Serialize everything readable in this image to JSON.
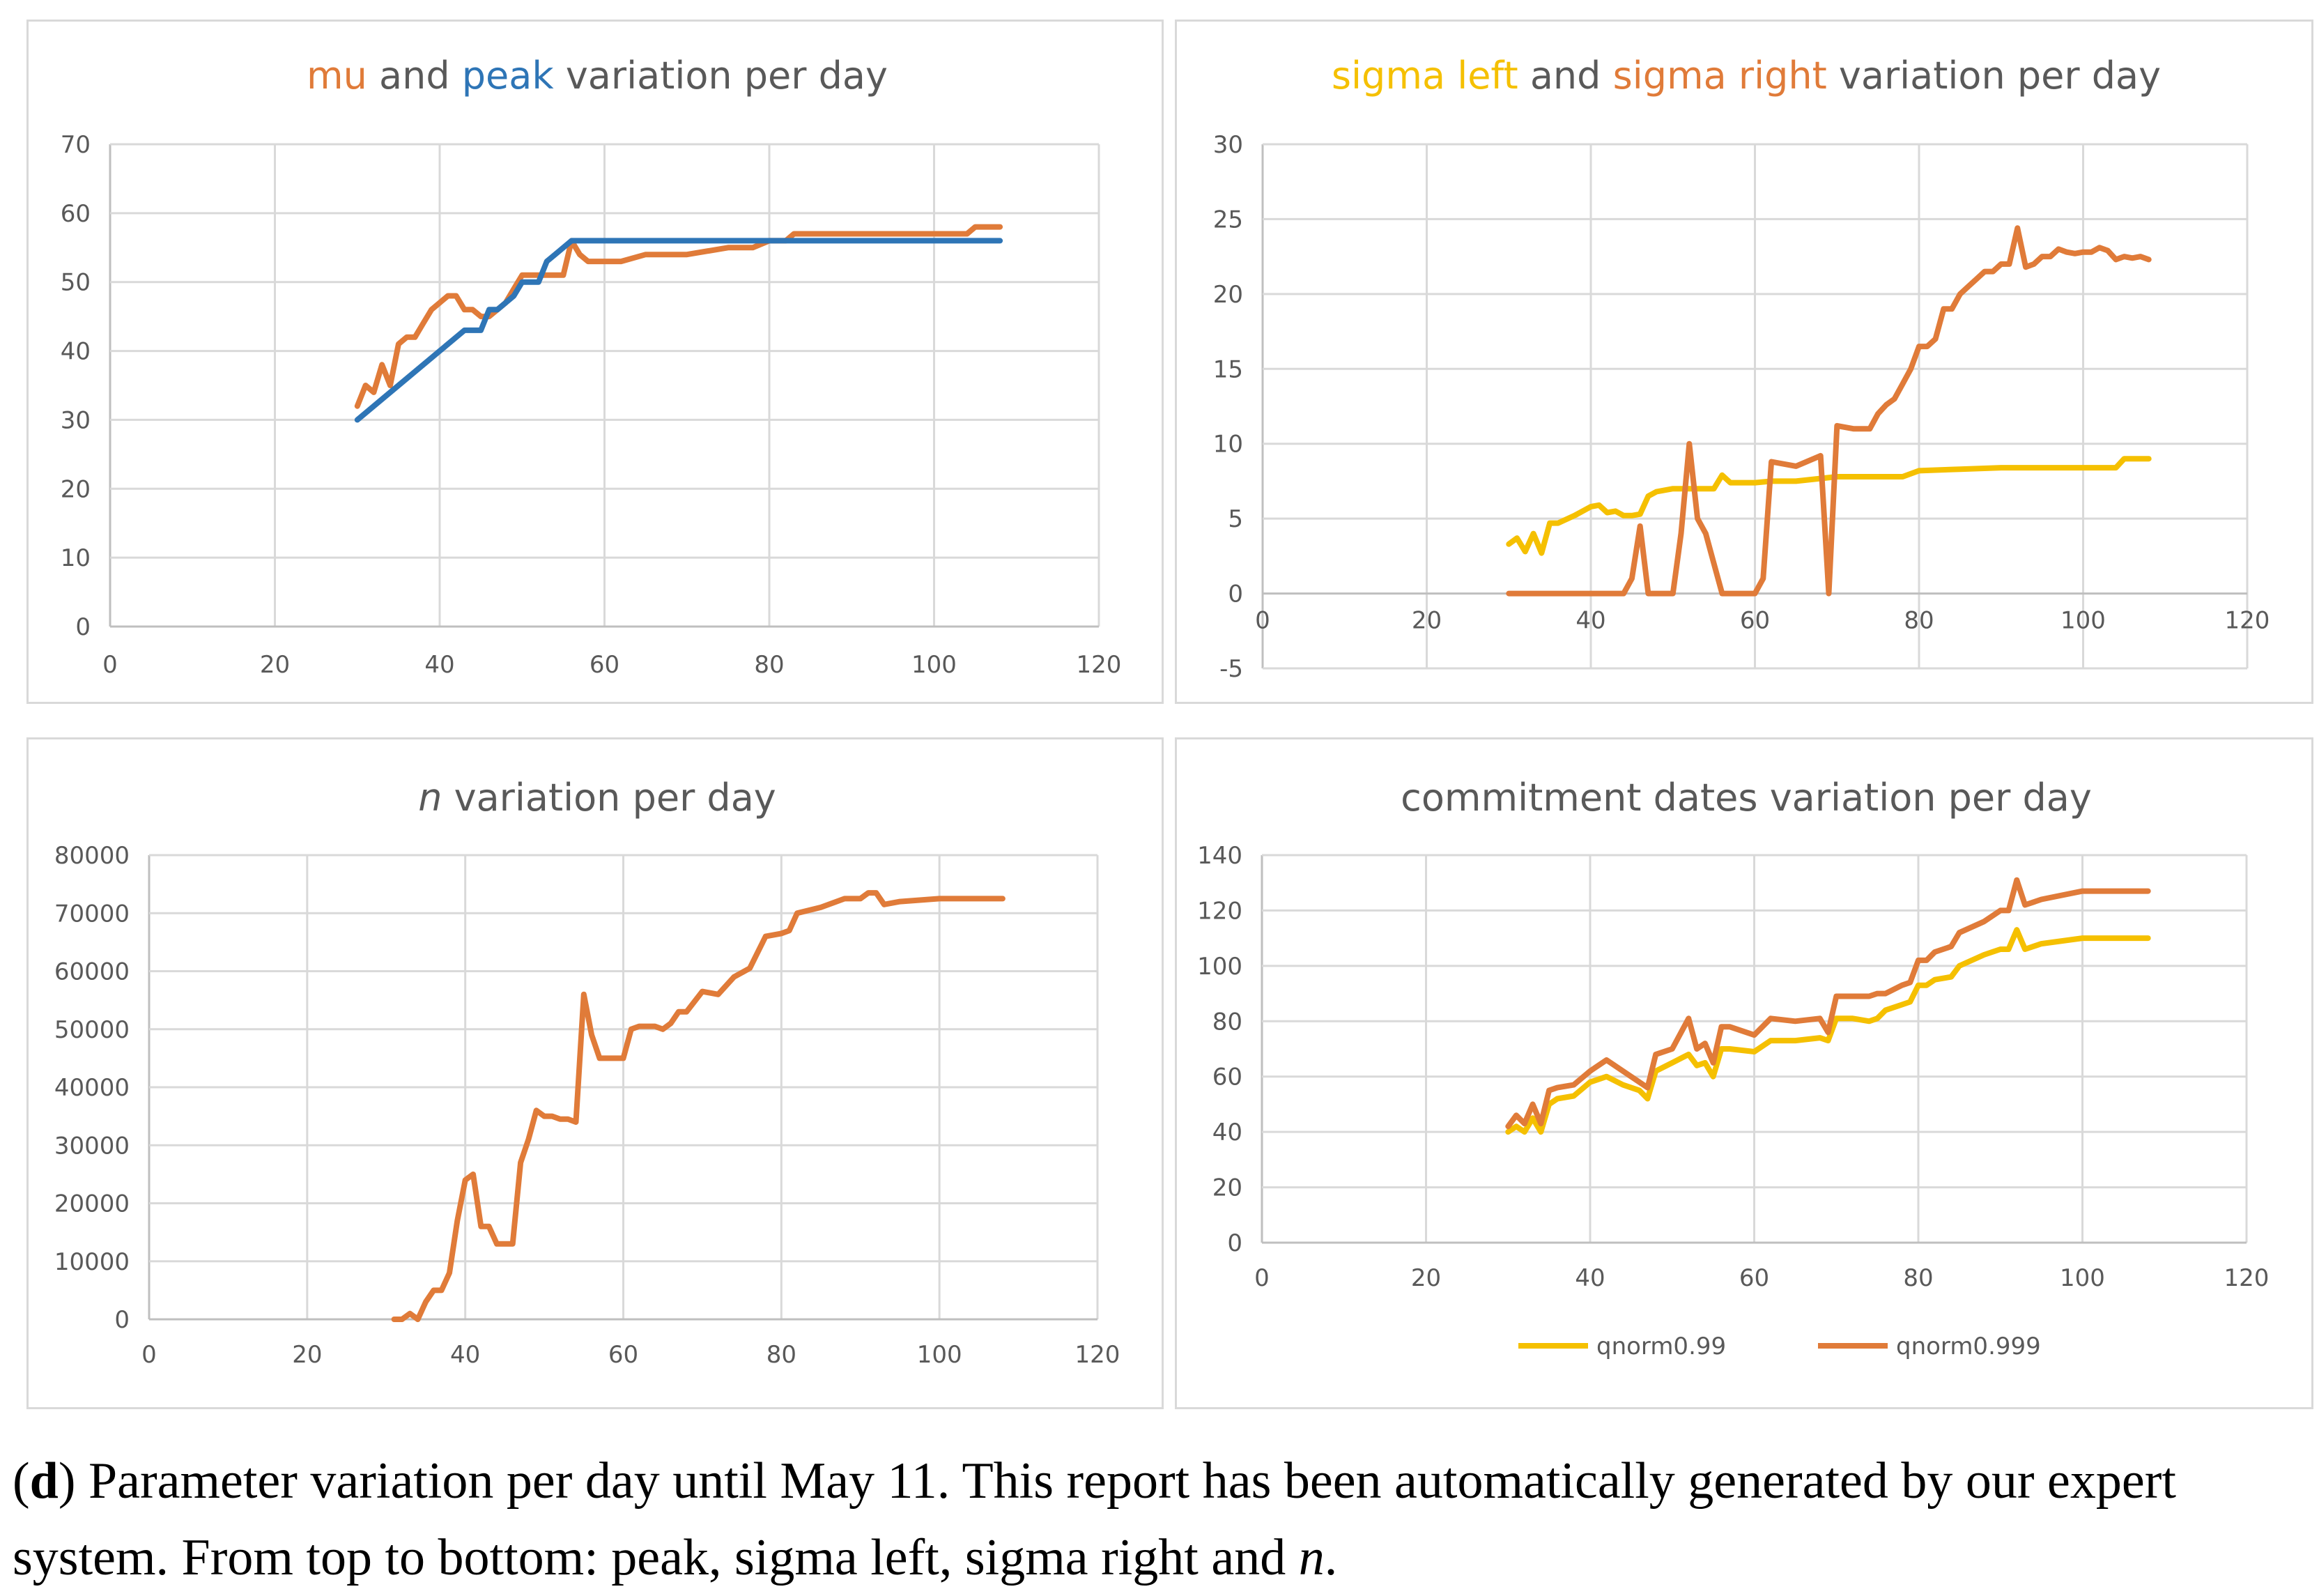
{
  "colors": {
    "orange": "#E07B39",
    "blue": "#2E75B6",
    "yellow": "#F5C000",
    "grid": "#D9D9D9",
    "text": "#595959"
  },
  "chart_data": [
    {
      "id": "c1",
      "type": "line",
      "title_parts": [
        {
          "text": "mu",
          "color": "#E07B39"
        },
        {
          "text": " and ",
          "color": "#595959"
        },
        {
          "text": "peak",
          "color": "#2E75B6"
        },
        {
          "text": " variation per day",
          "color": "#595959"
        }
      ],
      "xlim": [
        0,
        120
      ],
      "ylim": [
        0,
        70
      ],
      "xticks": [
        0,
        20,
        40,
        60,
        80,
        100,
        120
      ],
      "yticks": [
        0,
        10,
        20,
        30,
        40,
        50,
        60,
        70
      ],
      "series": [
        {
          "name": "mu",
          "color": "#E07B39",
          "x": [
            30,
            31,
            32,
            33,
            34,
            35,
            36,
            37,
            38,
            39,
            40,
            41,
            42,
            43,
            44,
            45,
            46,
            47,
            48,
            49,
            50,
            52,
            54,
            55,
            56,
            57,
            58,
            60,
            62,
            65,
            70,
            75,
            78,
            80,
            82,
            83,
            85,
            90,
            95,
            100,
            103,
            104,
            105,
            106,
            107,
            108
          ],
          "y": [
            32,
            35,
            34,
            38,
            35,
            41,
            42,
            42,
            44,
            46,
            47,
            48,
            48,
            46,
            46,
            45,
            45,
            46,
            47,
            49,
            51,
            51,
            51,
            51,
            56,
            54,
            53,
            53,
            53,
            54,
            54,
            55,
            55,
            56,
            56,
            57,
            57,
            57,
            57,
            57,
            57,
            57,
            58,
            58,
            58,
            58
          ]
        },
        {
          "name": "peak",
          "color": "#2E75B6",
          "x": [
            30,
            35,
            40,
            43,
            44,
            45,
            46,
            47,
            48,
            49,
            50,
            51,
            52,
            53,
            54,
            55,
            56,
            60,
            70,
            80,
            90,
            100,
            108
          ],
          "y": [
            30,
            35,
            40,
            43,
            43,
            43,
            46,
            46,
            47,
            48,
            50,
            50,
            50,
            53,
            54,
            55,
            56,
            56,
            56,
            56,
            56,
            56,
            56
          ]
        }
      ]
    },
    {
      "id": "c2",
      "type": "line",
      "title_parts": [
        {
          "text": "sigma left",
          "color": "#F5C000"
        },
        {
          "text": " and ",
          "color": "#595959"
        },
        {
          "text": "sigma right",
          "color": "#E07B39"
        },
        {
          "text": " variation per day",
          "color": "#595959"
        }
      ],
      "xlim": [
        0,
        120
      ],
      "ylim": [
        -5,
        30
      ],
      "xticks": [
        0,
        20,
        40,
        60,
        80,
        100,
        120
      ],
      "yticks": [
        -5,
        0,
        5,
        10,
        15,
        20,
        25,
        30
      ],
      "series": [
        {
          "name": "sigma left",
          "color": "#F5C000",
          "x": [
            30,
            31,
            32,
            33,
            34,
            35,
            36,
            38,
            40,
            41,
            42,
            43,
            44,
            45,
            46,
            47,
            48,
            50,
            52,
            54,
            55,
            56,
            57,
            60,
            62,
            65,
            70,
            75,
            78,
            80,
            85,
            90,
            95,
            100,
            104,
            105,
            108
          ],
          "y": [
            3.3,
            3.7,
            2.8,
            4,
            2.7,
            4.7,
            4.7,
            5.2,
            5.8,
            5.9,
            5.4,
            5.5,
            5.2,
            5.2,
            5.3,
            6.5,
            6.8,
            7,
            7,
            7,
            7,
            7.9,
            7.4,
            7.4,
            7.5,
            7.5,
            7.8,
            7.8,
            7.8,
            8.2,
            8.3,
            8.4,
            8.4,
            8.4,
            8.4,
            9,
            9
          ]
        },
        {
          "name": "sigma right",
          "color": "#E07B39",
          "x": [
            30,
            44,
            45,
            46,
            47,
            48,
            50,
            51,
            52,
            53,
            54,
            55,
            56,
            60,
            61,
            62,
            65,
            68,
            69,
            70,
            72,
            74,
            75,
            76,
            77,
            78,
            79,
            80,
            81,
            82,
            83,
            84,
            85,
            86,
            87,
            88,
            89,
            90,
            91,
            92,
            93,
            94,
            95,
            96,
            97,
            98,
            99,
            100,
            101,
            102,
            103,
            104,
            105,
            106,
            107,
            108
          ],
          "y": [
            0,
            0,
            1,
            4.5,
            0,
            0,
            0,
            4,
            10,
            5,
            4,
            2,
            0,
            0,
            1,
            8.8,
            8.5,
            9.2,
            0,
            11.2,
            11,
            11,
            12,
            12.6,
            13,
            14,
            15,
            16.5,
            16.5,
            17,
            19,
            19,
            20,
            20.5,
            21,
            21.5,
            21.5,
            22,
            22,
            24.4,
            21.8,
            22,
            22.5,
            22.5,
            23,
            22.8,
            22.7,
            22.8,
            22.8,
            23.1,
            22.9,
            22.3,
            22.5,
            22.4,
            22.5,
            22.3
          ]
        }
      ]
    },
    {
      "id": "c3",
      "type": "line",
      "title_parts": [
        {
          "text": "n",
          "color": "#595959",
          "italic": true
        },
        {
          "text": " variation per day",
          "color": "#595959"
        }
      ],
      "xlim": [
        0,
        120
      ],
      "ylim": [
        0,
        80000
      ],
      "xticks": [
        0,
        20,
        40,
        60,
        80,
        100,
        120
      ],
      "yticks": [
        0,
        10000,
        20000,
        30000,
        40000,
        50000,
        60000,
        70000,
        80000
      ],
      "series": [
        {
          "name": "n",
          "color": "#E07B39",
          "x": [
            31,
            32,
            33,
            34,
            35,
            36,
            37,
            38,
            39,
            40,
            41,
            42,
            43,
            44,
            45,
            46,
            47,
            48,
            49,
            50,
            51,
            52,
            53,
            54,
            55,
            56,
            57,
            58,
            59,
            60,
            61,
            62,
            63,
            64,
            65,
            66,
            67,
            68,
            70,
            72,
            74,
            76,
            78,
            80,
            81,
            82,
            85,
            88,
            90,
            91,
            92,
            93,
            95,
            100,
            105,
            108
          ],
          "y": [
            0,
            0,
            1000,
            0,
            3000,
            5000,
            5000,
            8000,
            17000,
            24000,
            25000,
            16000,
            16000,
            13000,
            13000,
            13000,
            27000,
            31000,
            36000,
            35000,
            35000,
            34500,
            34500,
            34000,
            56000,
            49000,
            45000,
            45000,
            45000,
            45000,
            50000,
            50500,
            50500,
            50500,
            50000,
            51000,
            53000,
            53000,
            56500,
            56000,
            59000,
            60500,
            66000,
            66500,
            67000,
            70000,
            71000,
            72500,
            72500,
            73500,
            73500,
            71500,
            72000,
            72500,
            72500,
            72500
          ]
        }
      ]
    },
    {
      "id": "c4",
      "type": "line",
      "title_parts": [
        {
          "text": "commitment dates variation per day",
          "color": "#595959"
        }
      ],
      "xlim": [
        0,
        120
      ],
      "ylim": [
        0,
        140
      ],
      "xticks": [
        0,
        20,
        40,
        60,
        80,
        100,
        120
      ],
      "yticks": [
        0,
        20,
        40,
        60,
        80,
        100,
        120,
        140
      ],
      "legend": "bottom",
      "series": [
        {
          "name": "qnorm0.99",
          "color": "#F5C000",
          "x": [
            30,
            31,
            32,
            33,
            34,
            35,
            36,
            38,
            40,
            42,
            44,
            46,
            47,
            48,
            50,
            52,
            53,
            54,
            55,
            56,
            57,
            60,
            62,
            65,
            68,
            69,
            70,
            72,
            74,
            75,
            76,
            78,
            79,
            80,
            81,
            82,
            84,
            85,
            88,
            90,
            91,
            92,
            93,
            95,
            100,
            105,
            108
          ],
          "y": [
            40,
            42,
            40,
            45,
            40,
            50,
            52,
            53,
            58,
            60,
            57,
            55,
            52,
            62,
            65,
            68,
            64,
            65,
            60,
            70,
            70,
            69,
            73,
            73,
            74,
            73,
            81,
            81,
            80,
            81,
            84,
            86,
            87,
            93,
            93,
            95,
            96,
            100,
            104,
            106,
            106,
            113,
            106,
            108,
            110,
            110,
            110
          ]
        },
        {
          "name": "qnorm0.999",
          "color": "#E07B39",
          "x": [
            30,
            31,
            32,
            33,
            34,
            35,
            36,
            38,
            40,
            42,
            44,
            46,
            47,
            48,
            50,
            52,
            53,
            54,
            55,
            56,
            57,
            60,
            62,
            65,
            68,
            69,
            70,
            72,
            74,
            75,
            76,
            78,
            79,
            80,
            81,
            82,
            84,
            85,
            88,
            90,
            91,
            92,
            93,
            95,
            100,
            105,
            108
          ],
          "y": [
            42,
            46,
            43,
            50,
            43,
            55,
            56,
            57,
            62,
            66,
            62,
            58,
            56,
            68,
            70,
            81,
            70,
            72,
            65,
            78,
            78,
            75,
            81,
            80,
            81,
            76,
            89,
            89,
            89,
            90,
            90,
            93,
            94,
            102,
            102,
            105,
            107,
            112,
            116,
            120,
            120,
            131,
            122,
            124,
            127,
            127,
            127
          ]
        }
      ]
    }
  ],
  "caption": {
    "open_paren": "(",
    "label": "d",
    "text1": ") Parameter variation per day until May 11. This report has been automatically generated by our expert system. From top to bottom: peak, sigma left, sigma right and ",
    "n": "n",
    "text2": "."
  }
}
